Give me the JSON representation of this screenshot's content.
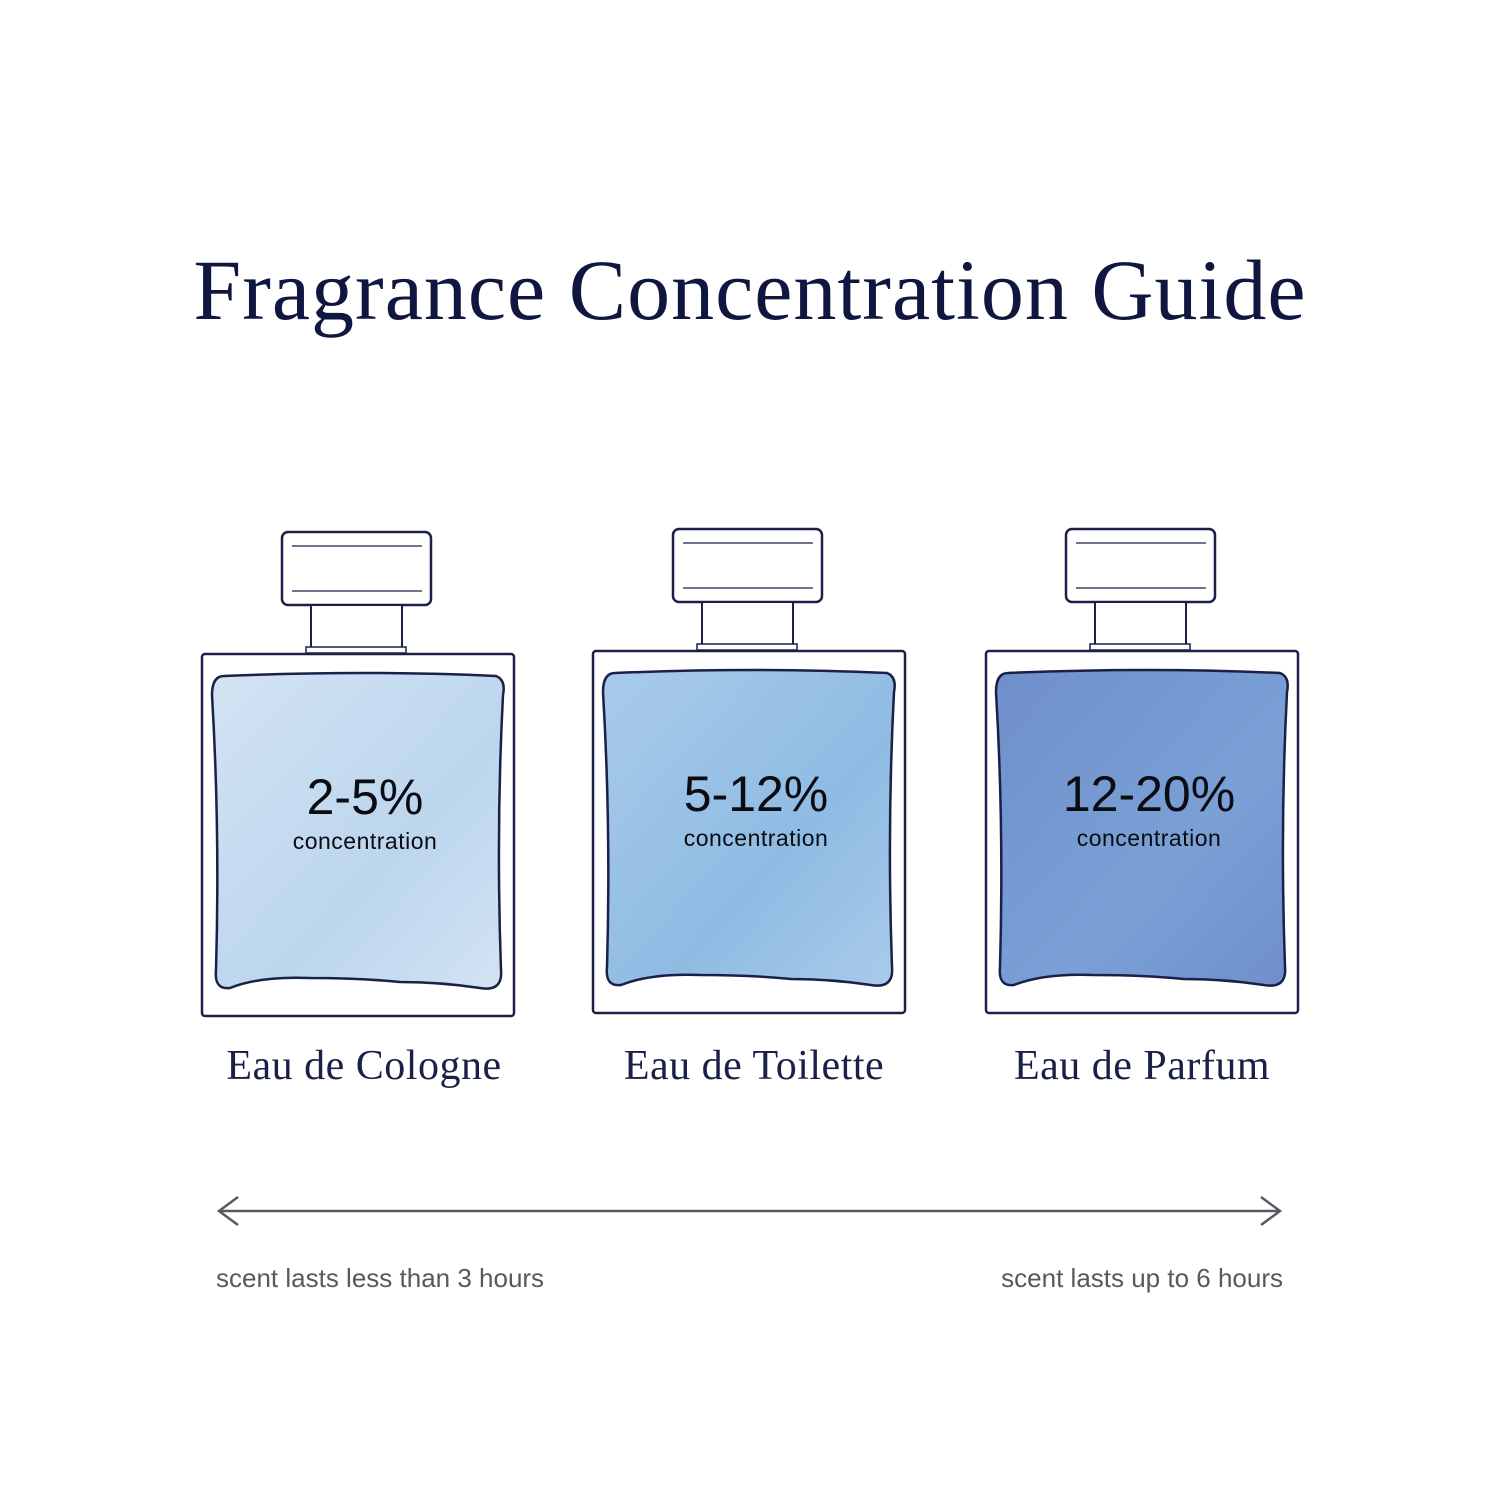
{
  "title": "Fragrance Concentration Guide",
  "bottles": [
    {
      "percent": "2-5%",
      "sublabel": "concentration",
      "name": "Eau de Cologne",
      "color": "#d3e3f3",
      "color2": "#bcd6ee"
    },
    {
      "percent": "5-12%",
      "sublabel": "concentration",
      "name": "Eau de Toilette",
      "color": "#a9cbea",
      "color2": "#8fbbe3"
    },
    {
      "percent": "12-20%",
      "sublabel": "concentration",
      "name": "Eau de Parfum",
      "color": "#6f8fcb",
      "color2": "#7aa0d6"
    }
  ],
  "scale": {
    "left_label": "scent lasts less than 3 hours",
    "right_label": "scent lasts up to 6 hours",
    "arrow_color": "#555a60"
  },
  "outline_color": "#1a2048"
}
